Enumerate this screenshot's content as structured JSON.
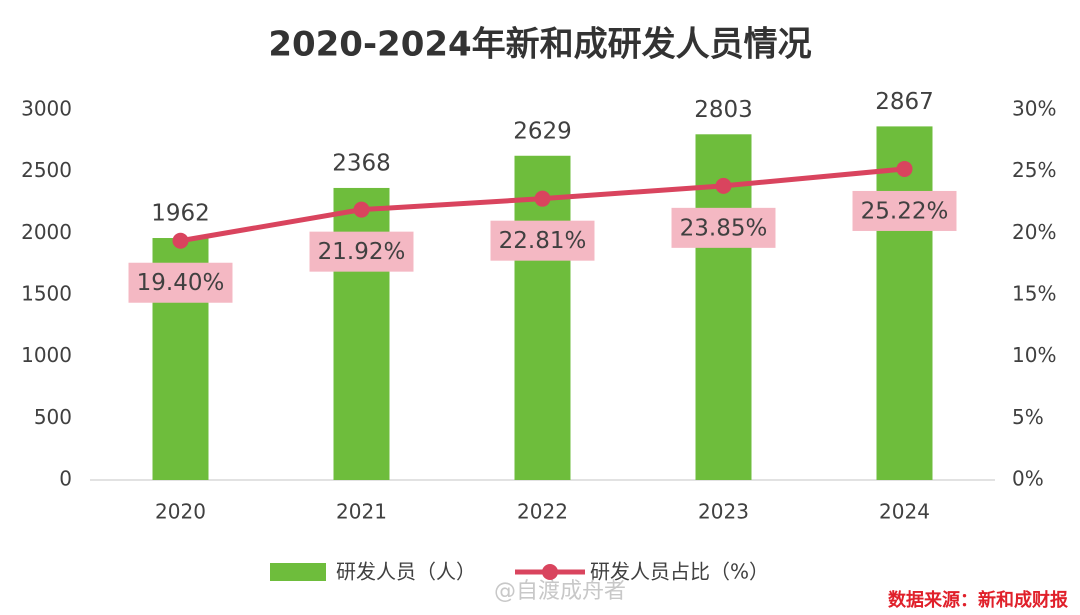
{
  "chart_data": {
    "type": "bar",
    "title": "2020-2024年新和成研发人员情况",
    "categories": [
      "2020",
      "2021",
      "2022",
      "2023",
      "2024"
    ],
    "series": [
      {
        "name": "研发人员（人）",
        "color": "#6ebd3c",
        "values": [
          1962,
          2368,
          2629,
          2803,
          2867
        ]
      },
      {
        "name": "研发人员占比（%）",
        "color": "#d9445e",
        "type": "line",
        "axis": "y2",
        "values": [
          19.4,
          21.92,
          22.81,
          23.85,
          25.22
        ],
        "value_labels": [
          "19.40%",
          "21.92%",
          "22.81%",
          "23.85%",
          "25.22%"
        ]
      }
    ],
    "ylim": [
      0,
      3000
    ],
    "yticks": [
      0,
      500,
      1000,
      1500,
      2000,
      2500,
      3000
    ],
    "y2lim": [
      0,
      30
    ],
    "y2ticks": [
      {
        "value": 0,
        "label": "0%"
      },
      {
        "value": 5,
        "label": "5%"
      },
      {
        "value": 10,
        "label": "10%"
      },
      {
        "value": 15,
        "label": "15%"
      },
      {
        "value": 20,
        "label": "20%"
      },
      {
        "value": 25,
        "label": "25%"
      },
      {
        "value": 30,
        "label": "30%"
      }
    ],
    "grid": false,
    "legend": "bottom",
    "source": "数据来源：新和成财报",
    "watermark": "@自渡成舟者"
  }
}
